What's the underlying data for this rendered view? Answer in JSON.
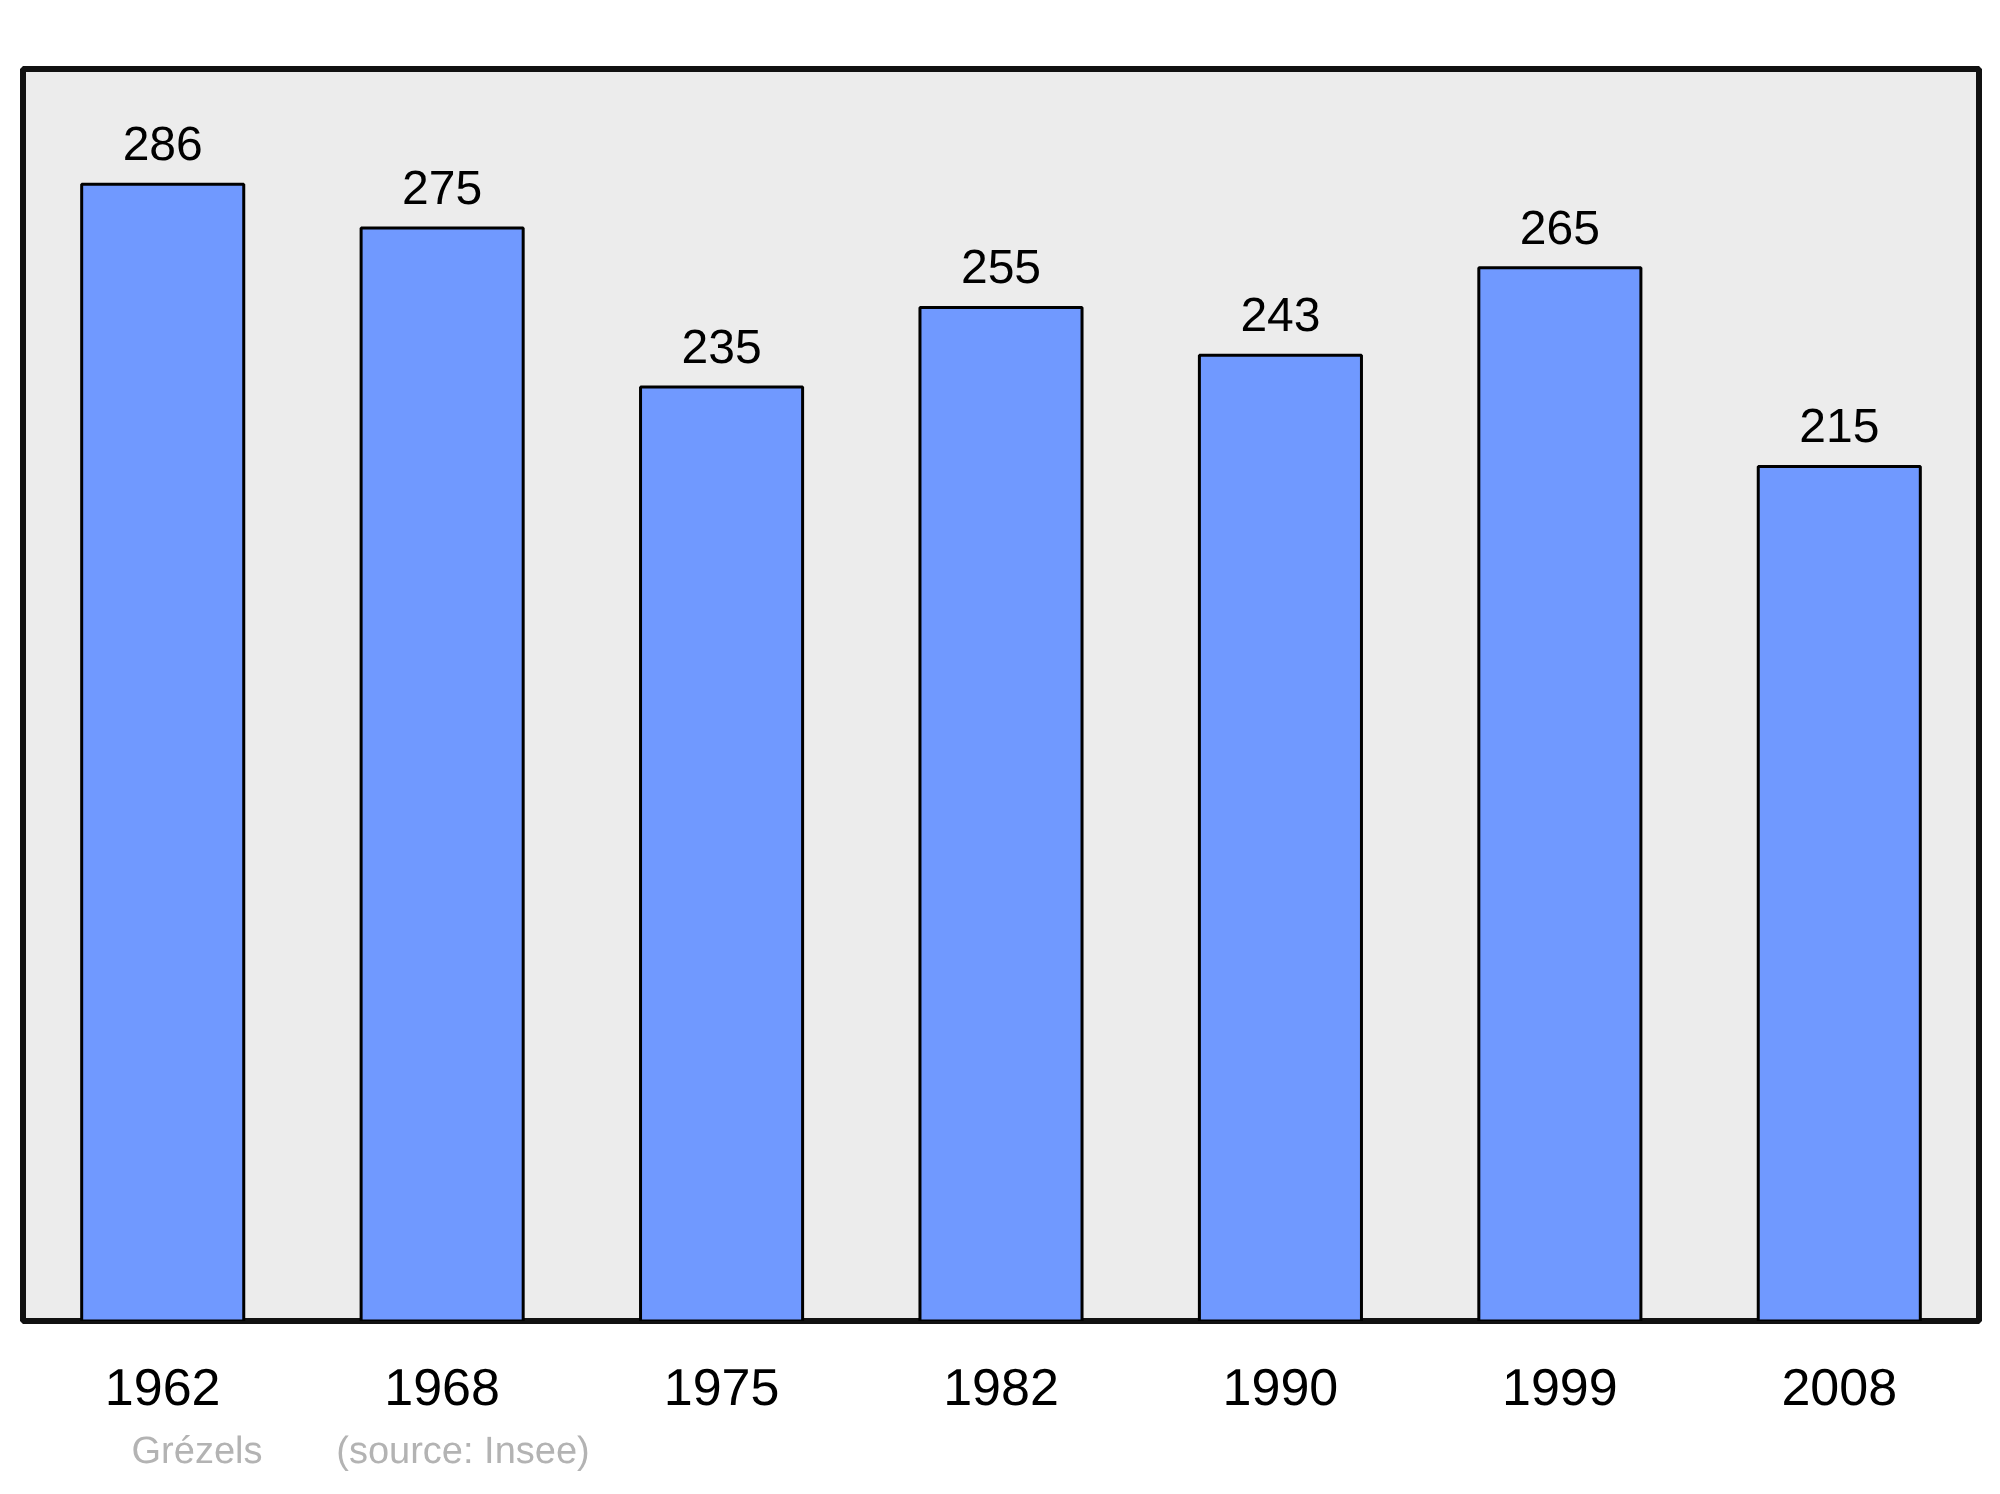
{
  "chart_data": {
    "type": "bar",
    "categories": [
      "1962",
      "1968",
      "1975",
      "1982",
      "1990",
      "1999",
      "2008"
    ],
    "values": [
      286,
      275,
      235,
      255,
      243,
      265,
      215
    ],
    "color": "#7099ff",
    "ylim": [
      0,
      315
    ],
    "data_labels": true,
    "grid": false,
    "annotations": [
      "Grézels",
      "(source: Insee)"
    ]
  }
}
